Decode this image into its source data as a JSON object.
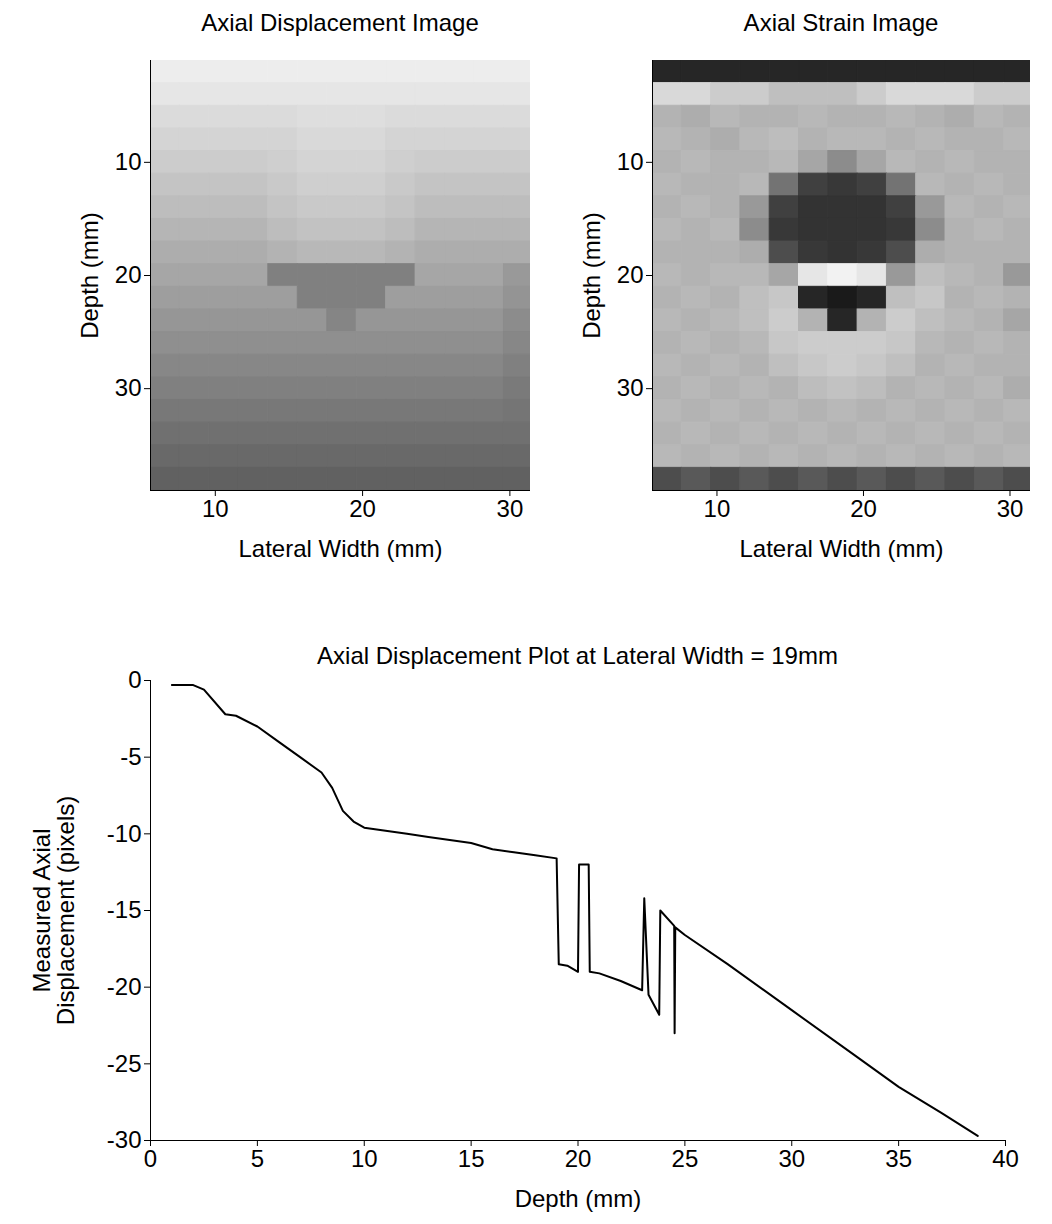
{
  "chart_data": [
    {
      "type": "heatmap",
      "title": "Axial Displacement Image",
      "x_label": "Lateral Width (mm)",
      "y_label": "Depth (mm)",
      "xlim": [
        5.6,
        31.4
      ],
      "ylim": [
        39,
        1
      ],
      "xticks": [
        10,
        20,
        30
      ],
      "yticks": [
        10,
        20,
        30
      ],
      "x": [
        6.6,
        8.6,
        10.6,
        12.6,
        14.6,
        16.6,
        18.6,
        20.6,
        22.6,
        24.6,
        26.6,
        28.6,
        30.6
      ],
      "y": [
        2,
        4,
        6,
        8,
        10,
        12,
        14,
        16,
        18,
        20,
        22,
        24,
        26,
        28,
        30,
        32,
        34,
        36,
        38
      ],
      "cells": [
        [
          0.93,
          0.93,
          0.93,
          0.93,
          0.93,
          0.93,
          0.93,
          0.93,
          0.93,
          0.93,
          0.93,
          0.93,
          0.93
        ],
        [
          0.9,
          0.9,
          0.9,
          0.9,
          0.9,
          0.9,
          0.9,
          0.9,
          0.9,
          0.9,
          0.9,
          0.9,
          0.9
        ],
        [
          0.86,
          0.86,
          0.86,
          0.86,
          0.86,
          0.87,
          0.87,
          0.87,
          0.86,
          0.86,
          0.86,
          0.86,
          0.86
        ],
        [
          0.83,
          0.83,
          0.83,
          0.83,
          0.83,
          0.85,
          0.85,
          0.85,
          0.83,
          0.83,
          0.83,
          0.83,
          0.83
        ],
        [
          0.8,
          0.8,
          0.8,
          0.8,
          0.81,
          0.83,
          0.83,
          0.83,
          0.81,
          0.8,
          0.8,
          0.8,
          0.8
        ],
        [
          0.77,
          0.77,
          0.77,
          0.77,
          0.79,
          0.81,
          0.81,
          0.81,
          0.79,
          0.77,
          0.77,
          0.77,
          0.77
        ],
        [
          0.74,
          0.74,
          0.74,
          0.74,
          0.77,
          0.79,
          0.79,
          0.79,
          0.77,
          0.74,
          0.74,
          0.74,
          0.74
        ],
        [
          0.71,
          0.71,
          0.71,
          0.71,
          0.74,
          0.76,
          0.76,
          0.76,
          0.74,
          0.71,
          0.71,
          0.71,
          0.71
        ],
        [
          0.68,
          0.68,
          0.68,
          0.68,
          0.7,
          0.72,
          0.72,
          0.72,
          0.7,
          0.68,
          0.68,
          0.68,
          0.68
        ],
        [
          0.65,
          0.65,
          0.65,
          0.65,
          0.5,
          0.5,
          0.5,
          0.5,
          0.5,
          0.65,
          0.65,
          0.65,
          0.6
        ],
        [
          0.62,
          0.62,
          0.62,
          0.62,
          0.62,
          0.5,
          0.5,
          0.5,
          0.62,
          0.62,
          0.62,
          0.62,
          0.58
        ],
        [
          0.59,
          0.59,
          0.59,
          0.59,
          0.59,
          0.59,
          0.52,
          0.59,
          0.59,
          0.59,
          0.59,
          0.59,
          0.55
        ],
        [
          0.56,
          0.56,
          0.56,
          0.56,
          0.56,
          0.56,
          0.56,
          0.56,
          0.56,
          0.56,
          0.56,
          0.56,
          0.53
        ],
        [
          0.53,
          0.53,
          0.53,
          0.53,
          0.53,
          0.53,
          0.53,
          0.53,
          0.53,
          0.53,
          0.53,
          0.53,
          0.5
        ],
        [
          0.5,
          0.5,
          0.5,
          0.5,
          0.5,
          0.5,
          0.5,
          0.5,
          0.5,
          0.5,
          0.5,
          0.5,
          0.48
        ],
        [
          0.47,
          0.47,
          0.47,
          0.47,
          0.47,
          0.47,
          0.47,
          0.47,
          0.47,
          0.47,
          0.47,
          0.47,
          0.46
        ],
        [
          0.44,
          0.44,
          0.44,
          0.44,
          0.44,
          0.44,
          0.44,
          0.44,
          0.44,
          0.44,
          0.44,
          0.44,
          0.44
        ],
        [
          0.41,
          0.41,
          0.41,
          0.41,
          0.41,
          0.41,
          0.41,
          0.41,
          0.41,
          0.41,
          0.41,
          0.41,
          0.41
        ],
        [
          0.38,
          0.38,
          0.38,
          0.38,
          0.38,
          0.38,
          0.38,
          0.38,
          0.38,
          0.38,
          0.38,
          0.38,
          0.38
        ]
      ]
    },
    {
      "type": "heatmap",
      "title": "Axial Strain Image",
      "x_label": "Lateral Width (mm)",
      "y_label": "Depth (mm)",
      "xlim": [
        5.6,
        31.4
      ],
      "ylim": [
        39,
        1
      ],
      "xticks": [
        10,
        20,
        30
      ],
      "yticks": [
        10,
        20,
        30
      ],
      "x": [
        6.6,
        8.6,
        10.6,
        12.6,
        14.6,
        16.6,
        18.6,
        20.6,
        22.6,
        24.6,
        26.6,
        28.6,
        30.6
      ],
      "y": [
        2,
        4,
        6,
        8,
        10,
        12,
        14,
        16,
        18,
        20,
        22,
        24,
        26,
        28,
        30,
        32,
        34,
        36,
        38
      ],
      "cells": [
        [
          0.15,
          0.15,
          0.15,
          0.15,
          0.15,
          0.15,
          0.15,
          0.15,
          0.15,
          0.15,
          0.15,
          0.15,
          0.15
        ],
        [
          0.85,
          0.85,
          0.8,
          0.8,
          0.75,
          0.75,
          0.75,
          0.8,
          0.85,
          0.85,
          0.85,
          0.8,
          0.8
        ],
        [
          0.7,
          0.68,
          0.72,
          0.7,
          0.7,
          0.72,
          0.7,
          0.7,
          0.72,
          0.7,
          0.68,
          0.72,
          0.7
        ],
        [
          0.72,
          0.7,
          0.68,
          0.72,
          0.74,
          0.7,
          0.72,
          0.72,
          0.7,
          0.72,
          0.7,
          0.7,
          0.72
        ],
        [
          0.7,
          0.72,
          0.7,
          0.7,
          0.72,
          0.65,
          0.55,
          0.65,
          0.72,
          0.7,
          0.72,
          0.7,
          0.7
        ],
        [
          0.72,
          0.7,
          0.7,
          0.72,
          0.45,
          0.25,
          0.22,
          0.25,
          0.45,
          0.72,
          0.7,
          0.72,
          0.7
        ],
        [
          0.7,
          0.72,
          0.7,
          0.6,
          0.25,
          0.2,
          0.2,
          0.2,
          0.25,
          0.6,
          0.72,
          0.7,
          0.72
        ],
        [
          0.72,
          0.7,
          0.72,
          0.55,
          0.22,
          0.2,
          0.2,
          0.2,
          0.22,
          0.55,
          0.7,
          0.72,
          0.7
        ],
        [
          0.7,
          0.7,
          0.7,
          0.68,
          0.3,
          0.22,
          0.2,
          0.22,
          0.3,
          0.68,
          0.7,
          0.7,
          0.7
        ],
        [
          0.72,
          0.7,
          0.72,
          0.72,
          0.65,
          0.9,
          0.95,
          0.9,
          0.6,
          0.75,
          0.72,
          0.7,
          0.6
        ],
        [
          0.7,
          0.72,
          0.7,
          0.75,
          0.78,
          0.15,
          0.1,
          0.15,
          0.75,
          0.78,
          0.7,
          0.72,
          0.7
        ],
        [
          0.72,
          0.7,
          0.72,
          0.75,
          0.8,
          0.7,
          0.15,
          0.7,
          0.8,
          0.75,
          0.72,
          0.7,
          0.65
        ],
        [
          0.7,
          0.72,
          0.7,
          0.72,
          0.78,
          0.8,
          0.8,
          0.8,
          0.78,
          0.72,
          0.7,
          0.72,
          0.7
        ],
        [
          0.72,
          0.7,
          0.72,
          0.7,
          0.75,
          0.78,
          0.8,
          0.78,
          0.75,
          0.7,
          0.72,
          0.7,
          0.7
        ],
        [
          0.7,
          0.72,
          0.7,
          0.72,
          0.7,
          0.74,
          0.76,
          0.74,
          0.7,
          0.72,
          0.7,
          0.72,
          0.68
        ],
        [
          0.72,
          0.7,
          0.72,
          0.7,
          0.72,
          0.7,
          0.72,
          0.7,
          0.72,
          0.7,
          0.72,
          0.7,
          0.72
        ],
        [
          0.7,
          0.72,
          0.7,
          0.72,
          0.7,
          0.72,
          0.7,
          0.72,
          0.7,
          0.72,
          0.7,
          0.72,
          0.7
        ],
        [
          0.72,
          0.7,
          0.72,
          0.7,
          0.72,
          0.7,
          0.72,
          0.7,
          0.72,
          0.7,
          0.72,
          0.7,
          0.72
        ],
        [
          0.3,
          0.35,
          0.3,
          0.35,
          0.3,
          0.35,
          0.3,
          0.35,
          0.3,
          0.35,
          0.3,
          0.35,
          0.3
        ]
      ]
    },
    {
      "type": "line",
      "title": "Axial Displacement Plot at Lateral Width = 19mm",
      "x_label": "Depth (mm)",
      "y_label": "Measured Axial Displacement (pixels)",
      "xlim": [
        0,
        40
      ],
      "ylim": [
        -30,
        0
      ],
      "xticks": [
        0,
        5,
        10,
        15,
        20,
        25,
        30,
        35,
        40
      ],
      "yticks": [
        -30,
        -25,
        -20,
        -15,
        -10,
        -5,
        0
      ],
      "color": "#000000",
      "x": [
        1,
        2,
        2.5,
        3.5,
        4,
        5,
        6,
        7,
        8,
        8.5,
        9,
        9.5,
        10,
        11,
        12,
        13,
        14,
        15,
        16,
        17,
        18,
        19,
        19.1,
        19.5,
        20,
        20.05,
        20.5,
        20.55,
        21,
        22,
        23,
        23.1,
        23.3,
        23.8,
        23.85,
        24.5,
        24.52,
        24.55,
        25,
        27,
        30,
        33,
        35,
        37,
        38.7
      ],
      "values": [
        -0.3,
        -0.3,
        -0.6,
        -2.2,
        -2.3,
        -3,
        -4,
        -5,
        -6,
        -7,
        -8.5,
        -9.2,
        -9.6,
        -9.8,
        -10,
        -10.2,
        -10.4,
        -10.6,
        -11,
        -11.2,
        -11.4,
        -11.6,
        -18.5,
        -18.6,
        -19,
        -12,
        -12,
        -19,
        -19.1,
        -19.6,
        -20.2,
        -14.2,
        -20.5,
        -21.8,
        -15,
        -16,
        -23,
        -16.1,
        -16.6,
        -18.5,
        -21.5,
        -24.5,
        -26.5,
        -28.2,
        -29.7
      ]
    }
  ]
}
